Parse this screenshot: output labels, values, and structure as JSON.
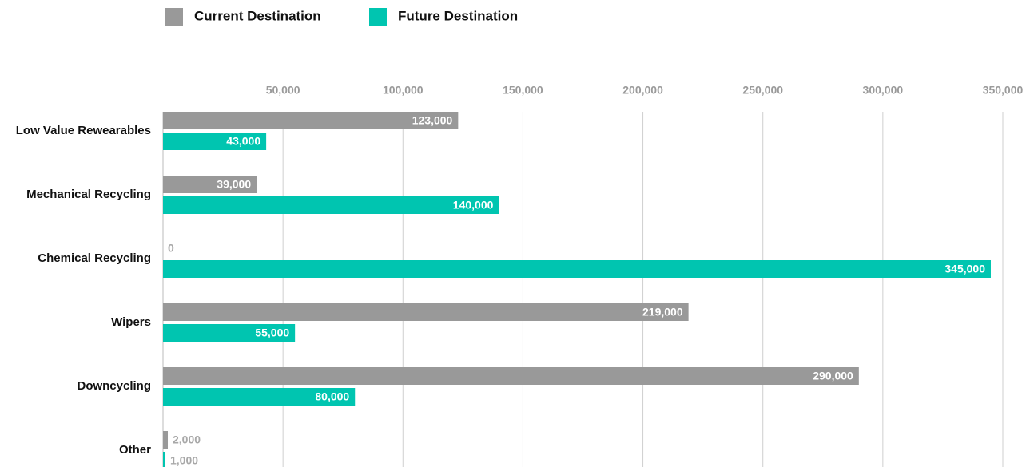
{
  "chart_data": {
    "type": "hbar",
    "categories": [
      "Low Value Rewearables",
      "Mechanical Recycling",
      "Chemical Recycling",
      "Wipers",
      "Downcycling",
      "Other"
    ],
    "series": [
      {
        "name": "Current Destination",
        "color": "#999999",
        "values": [
          123000,
          39000,
          0,
          219000,
          290000,
          2000
        ],
        "value_labels": [
          "123,000",
          "39,000",
          "0",
          "219,000",
          "290,000",
          "2,000"
        ]
      },
      {
        "name": "Future Destination",
        "color": "#00c5b0",
        "values": [
          43000,
          140000,
          345000,
          55000,
          80000,
          1000
        ],
        "value_labels": [
          "43,000",
          "140,000",
          "345,000",
          "55,000",
          "80,000",
          "1,000"
        ]
      }
    ],
    "xlim": [
      0,
      350000
    ],
    "xticks": [
      {
        "value": 50000,
        "label": "50,000"
      },
      {
        "value": 100000,
        "label": "100,000"
      },
      {
        "value": 150000,
        "label": "150,000"
      },
      {
        "value": 200000,
        "label": "200,000"
      },
      {
        "value": 250000,
        "label": "250,000"
      },
      {
        "value": 300000,
        "label": "300,000"
      },
      {
        "value": 350000,
        "label": "350,000"
      }
    ],
    "grid": true,
    "legend": "top"
  }
}
